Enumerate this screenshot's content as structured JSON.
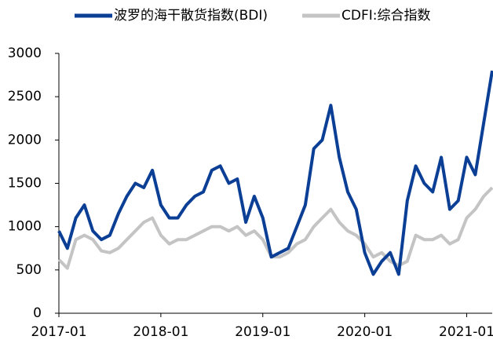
{
  "chart_data": {
    "type": "line",
    "x": [
      "2017-01",
      "2017-02",
      "2017-03",
      "2017-04",
      "2017-05",
      "2017-06",
      "2017-07",
      "2017-08",
      "2017-09",
      "2017-10",
      "2017-11",
      "2017-12",
      "2018-01",
      "2018-02",
      "2018-03",
      "2018-04",
      "2018-05",
      "2018-06",
      "2018-07",
      "2018-08",
      "2018-09",
      "2018-10",
      "2018-11",
      "2018-12",
      "2019-01",
      "2019-02",
      "2019-03",
      "2019-04",
      "2019-05",
      "2019-06",
      "2019-07",
      "2019-08",
      "2019-09",
      "2019-10",
      "2019-11",
      "2019-12",
      "2020-01",
      "2020-02",
      "2020-03",
      "2020-04",
      "2020-05",
      "2020-06",
      "2020-07",
      "2020-08",
      "2020-09",
      "2020-10",
      "2020-11",
      "2020-12",
      "2021-01",
      "2021-02",
      "2021-03",
      "2021-04"
    ],
    "series": [
      {
        "name": "波罗的海干散货指数(BDI)",
        "color": "#0b3f95",
        "values": [
          950,
          750,
          1100,
          1250,
          950,
          850,
          900,
          1150,
          1350,
          1500,
          1450,
          1650,
          1250,
          1100,
          1100,
          1250,
          1350,
          1400,
          1650,
          1700,
          1500,
          1550,
          1050,
          1350,
          1100,
          650,
          700,
          750,
          1000,
          1250,
          1900,
          2000,
          2400,
          1800,
          1400,
          1200,
          700,
          450,
          600,
          700,
          450,
          1300,
          1700,
          1500,
          1400,
          1800,
          1200,
          1300,
          1800,
          1600,
          2200,
          2800
        ]
      },
      {
        "name": "CDFI:综合指数",
        "color": "#c4c4c4",
        "values": [
          620,
          520,
          850,
          900,
          850,
          720,
          700,
          750,
          850,
          950,
          1050,
          1100,
          900,
          800,
          850,
          850,
          900,
          950,
          1000,
          1000,
          950,
          1000,
          900,
          950,
          850,
          650,
          650,
          700,
          800,
          850,
          1000,
          1100,
          1200,
          1050,
          950,
          900,
          800,
          650,
          700,
          600,
          550,
          600,
          900,
          850,
          850,
          900,
          800,
          850,
          1100,
          1200,
          1350,
          1450
        ]
      }
    ],
    "xlim": [
      "2017-01",
      "2021-04"
    ],
    "xticks": [
      "2017-01",
      "2018-01",
      "2019-01",
      "2020-01",
      "2021-01"
    ],
    "ylim": [
      0,
      3000
    ],
    "yticks": [
      0,
      500,
      1000,
      1500,
      2000,
      2500,
      3000
    ]
  }
}
